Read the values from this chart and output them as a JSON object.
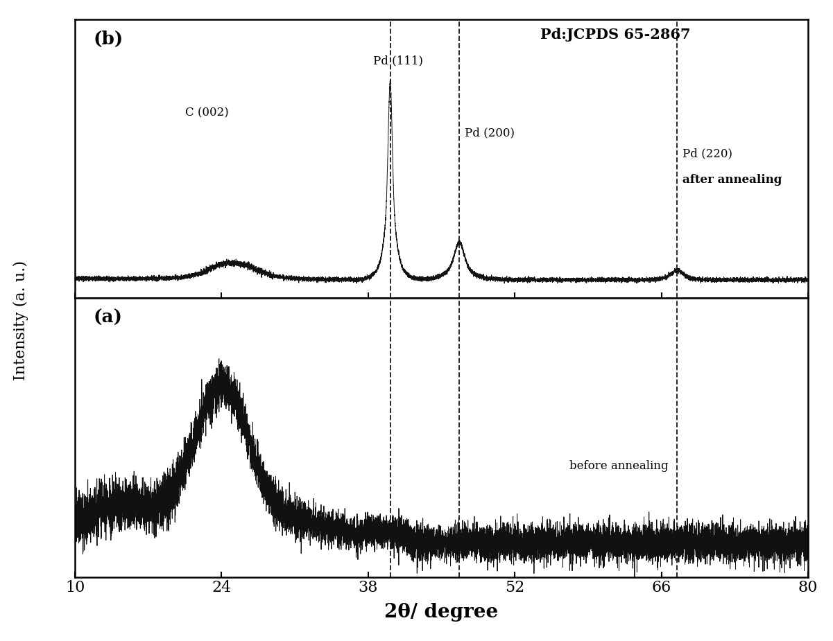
{
  "xlim": [
    10,
    80
  ],
  "xlabel": "2θ/ degree",
  "ylabel": "Intensity (a. u.)",
  "dashed_lines": [
    40.1,
    46.7,
    67.5
  ],
  "label_b": "(b)",
  "label_a": "(a)",
  "annotation_jcpds": "Pd:JCPDS 65-2867",
  "annotation_c002": "C (002)",
  "annotation_pd111": "Pd (111)",
  "annotation_pd200": "Pd (200)",
  "annotation_pd220_line1": "Pd (220)",
  "annotation_pd220_line2": "after annealing",
  "annotation_before": "before annealing",
  "background_color": "#ffffff",
  "line_color": "#111111",
  "xticks": [
    10,
    24,
    38,
    52,
    66,
    80
  ],
  "xticklabels": [
    "10",
    "24",
    "38",
    "52",
    "66",
    "80"
  ]
}
